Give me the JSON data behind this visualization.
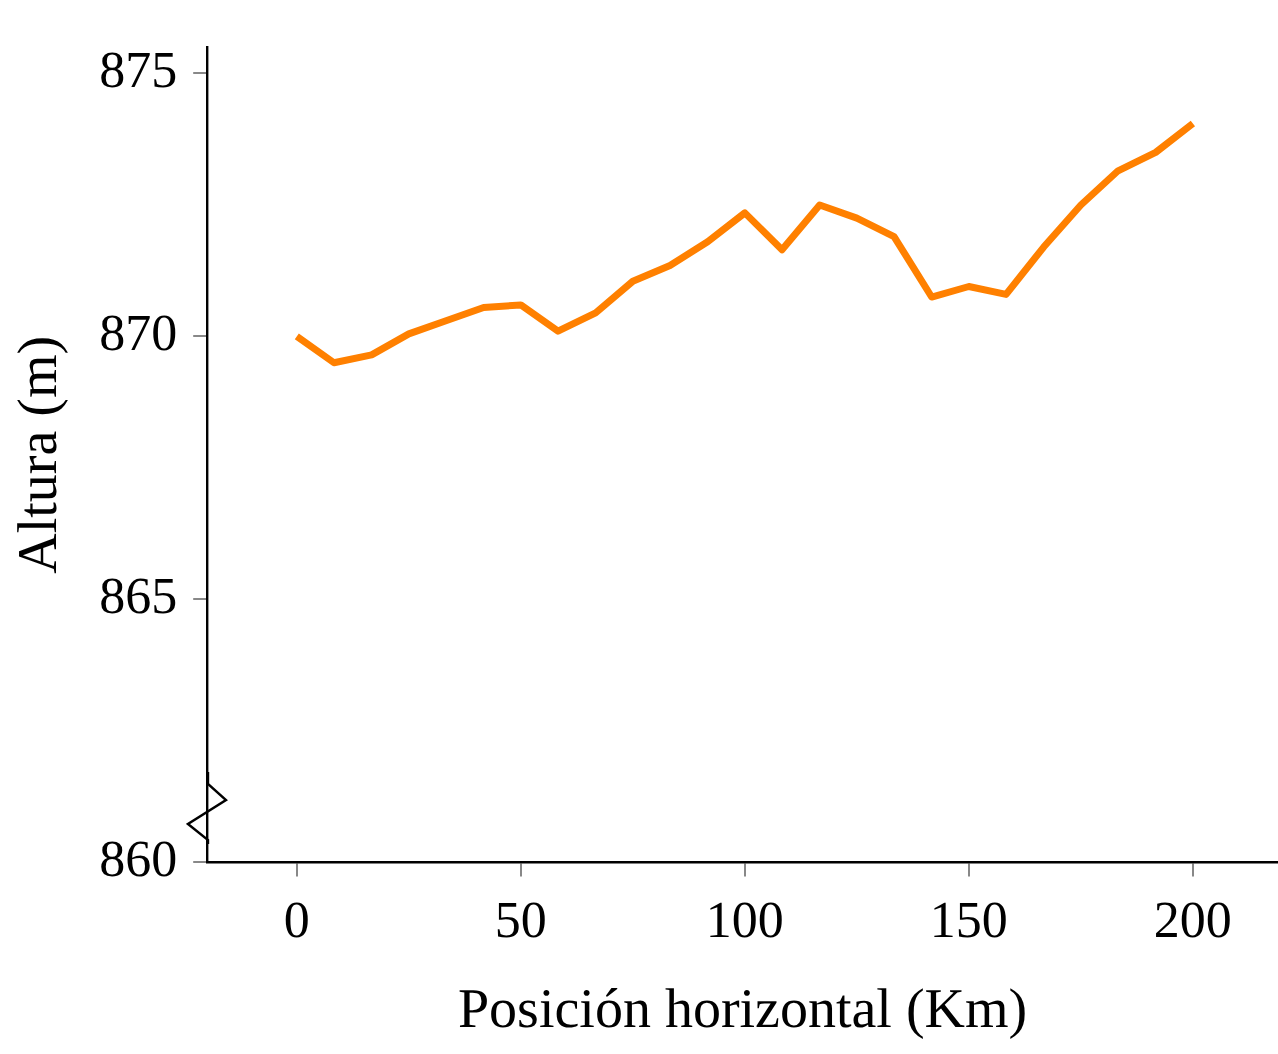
{
  "chart_data": {
    "type": "line",
    "xlabel": "Posición horizontal (Km)",
    "ylabel": "Altura (m)",
    "x": [
      0,
      8.3,
      16.7,
      25,
      33.3,
      41.7,
      50,
      58.3,
      66.7,
      75,
      83.3,
      91.7,
      100,
      108.3,
      116.7,
      125,
      133.3,
      141.7,
      150,
      158.3,
      166.7,
      175,
      183.3,
      191.7,
      200
    ],
    "series": [
      {
        "color": "#ff8000",
        "values": [
          870.0,
          869.5,
          869.65,
          870.05,
          870.3,
          870.55,
          870.6,
          870.1,
          870.45,
          871.05,
          871.35,
          871.8,
          872.35,
          871.65,
          872.5,
          872.25,
          871.9,
          870.75,
          870.95,
          870.8,
          871.7,
          872.5,
          873.15,
          873.5,
          874.05
        ]
      }
    ],
    "xlim": [
      -20,
      219
    ],
    "ylim": [
      860,
      875.5
    ],
    "xticks": [
      0,
      50,
      100,
      150,
      200
    ],
    "yticks": [
      860,
      865,
      870,
      875
    ],
    "grid": false,
    "legend": false,
    "marker": "none",
    "line_style": "solid"
  }
}
